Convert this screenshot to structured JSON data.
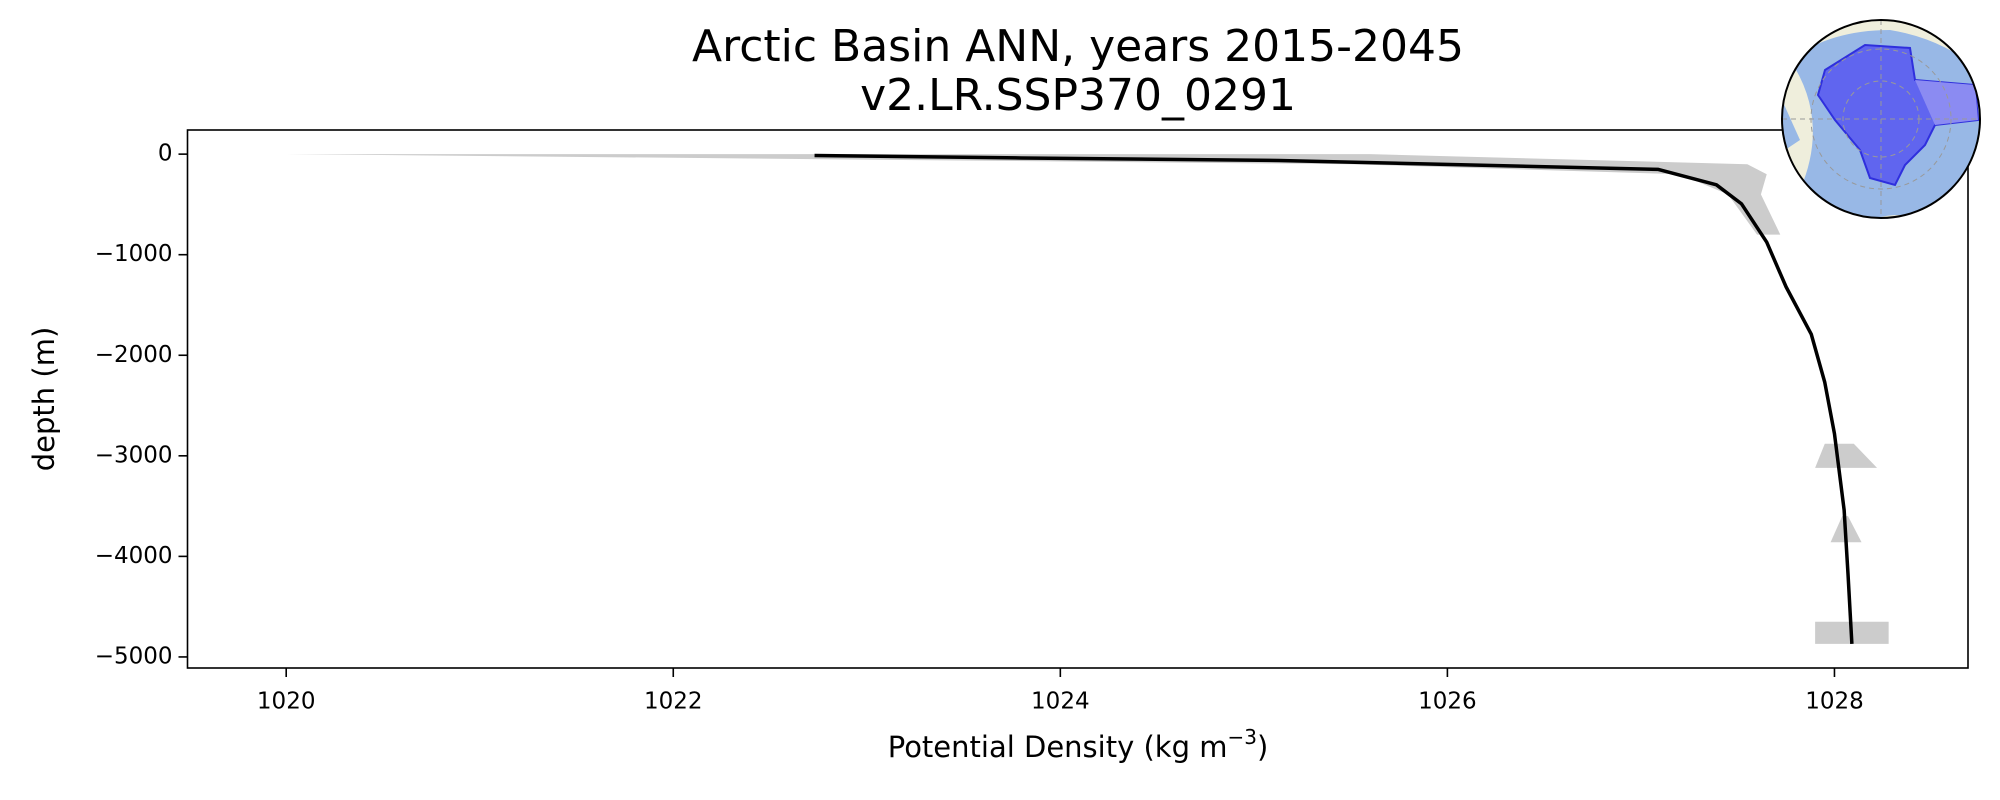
{
  "chart_data": {
    "type": "line",
    "title": [
      "Arctic Basin ANN, years 2015-2045",
      "v2.LR.SSP370_0291"
    ],
    "xlabel": {
      "text": "Potential Density (kg m",
      "superscript": "−3",
      "suffix": ")"
    },
    "ylabel": "depth (m)",
    "xlim": [
      1019.49,
      1028.69
    ],
    "ylim": [
      -5110,
      240
    ],
    "xticks": [
      1020,
      1022,
      1024,
      1026,
      1028
    ],
    "yticks": [
      0,
      {
        "value": -1000,
        "label": "−1000"
      },
      {
        "value": -2000,
        "label": "−2000"
      },
      {
        "value": -3000,
        "label": "−3000"
      },
      {
        "value": -4000,
        "label": "−4000"
      },
      {
        "value": -5000,
        "label": "−5000"
      }
    ],
    "band": {
      "color": "#cccccc",
      "depth": [
        0,
        -100,
        -200,
        -400,
        -800,
        null,
        -2880,
        -3120,
        null,
        -3600,
        -3860,
        null,
        -4650,
        -4870
      ],
      "lower": [
        1020.0,
        1025.5,
        1027.2,
        1027.45,
        1027.6,
        null,
        1027.95,
        1027.9,
        null,
        1028.04,
        1027.98,
        null,
        1027.9,
        1027.9
      ],
      "upper": [
        1025.6,
        1027.55,
        1027.65,
        1027.62,
        1027.72,
        null,
        1028.1,
        1028.22,
        null,
        1028.07,
        1028.14,
        null,
        1028.28,
        1028.28
      ]
    },
    "series": [
      {
        "color": "#000000",
        "x": [
          1022.73,
          1023.8,
          1025.13,
          1027.09,
          1027.39,
          1027.52,
          1027.65,
          1027.75,
          1027.88,
          1027.95,
          1028.0,
          1028.05,
          1028.07,
          1028.09
        ],
        "values": [
          -13,
          -38,
          -63,
          -152,
          -305,
          -495,
          -876,
          -1320,
          -1790,
          -2270,
          -2780,
          -3540,
          -4175,
          -4870
        ]
      }
    ]
  }
}
